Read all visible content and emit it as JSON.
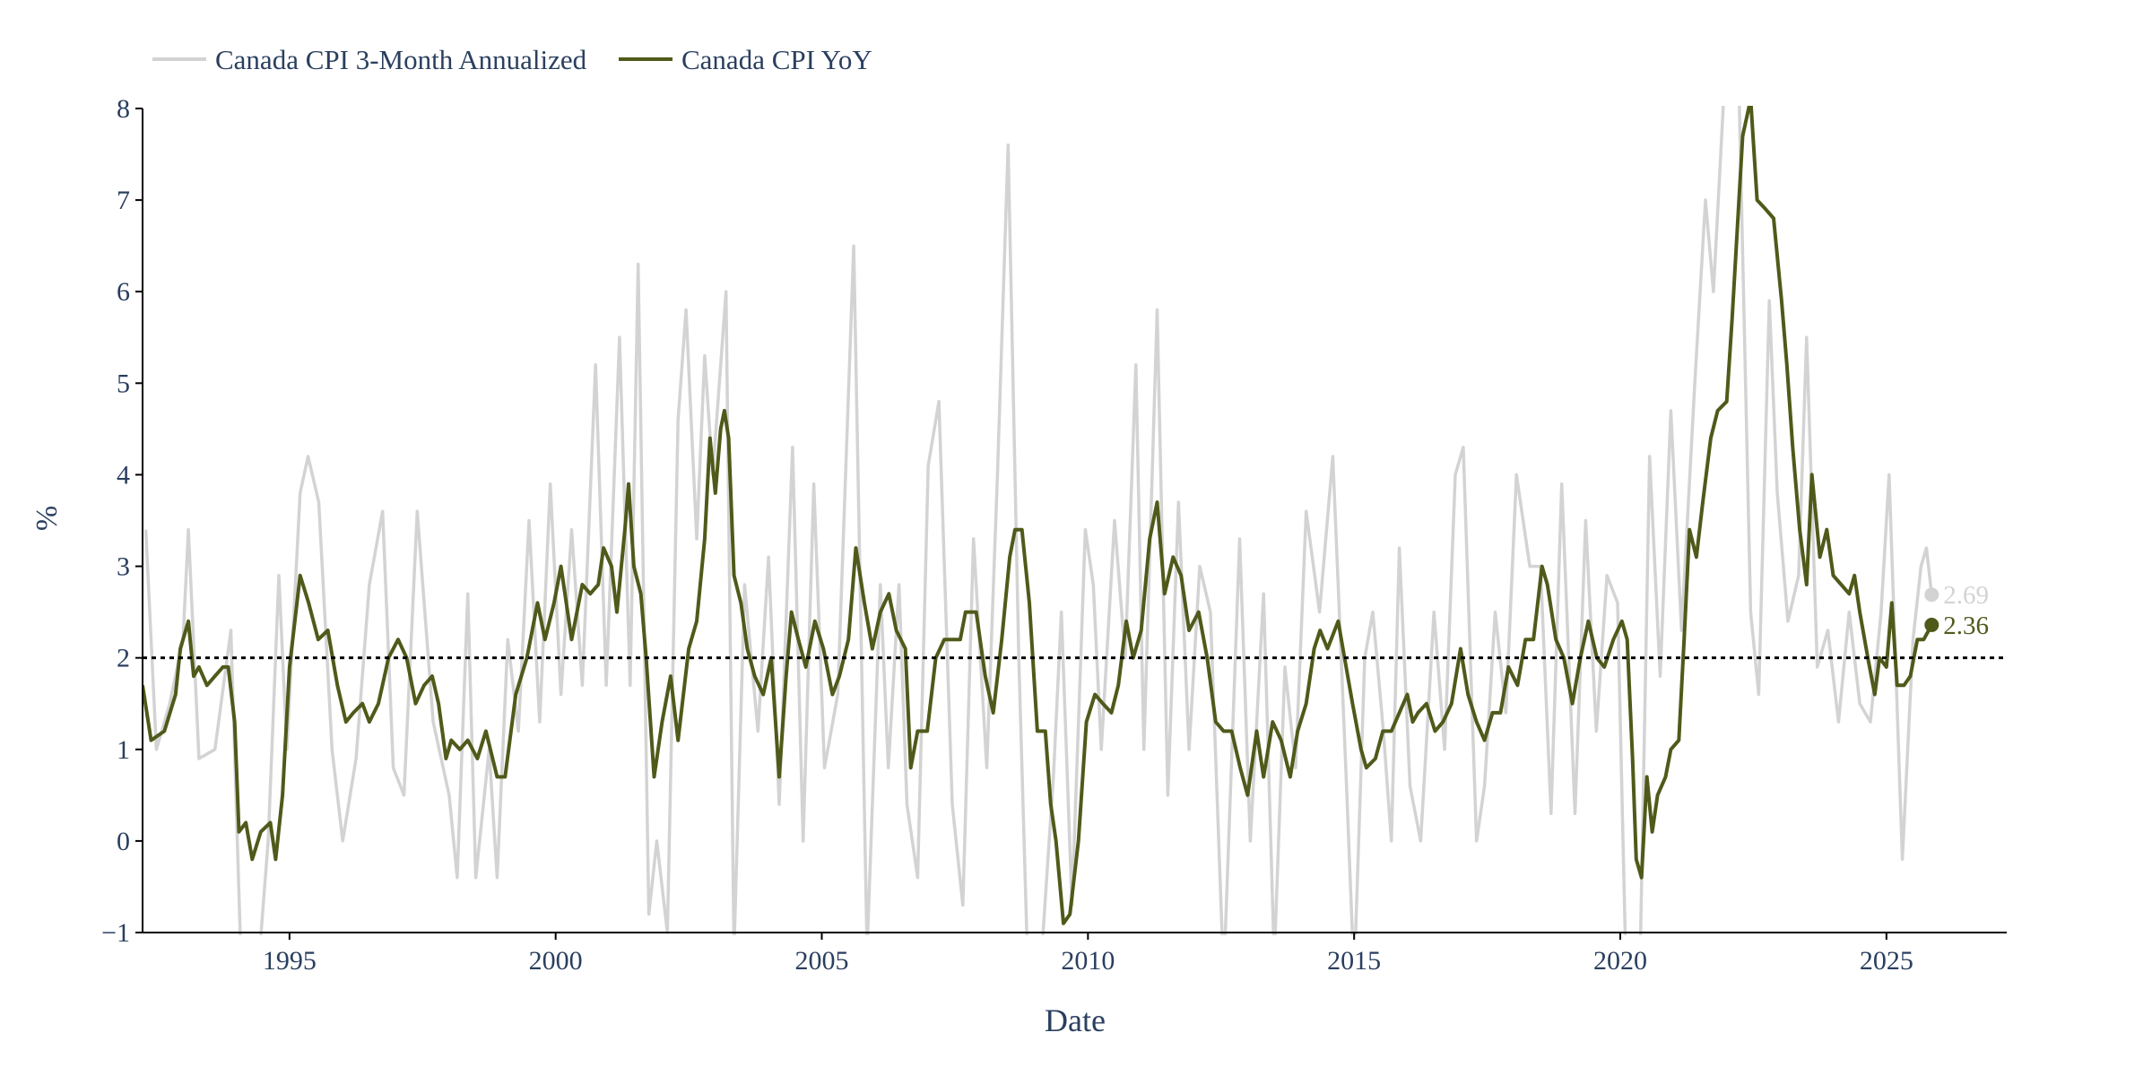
{
  "chart_data": {
    "type": "line",
    "title": "",
    "xlabel": "Date",
    "ylabel": "%",
    "xlim": [
      1992.24,
      2027.26
    ],
    "ylim": [
      -1,
      8
    ],
    "xticks": [
      1995,
      2000,
      2005,
      2010,
      2015,
      2020,
      2025
    ],
    "yticks": [
      -1,
      0,
      1,
      2,
      3,
      4,
      5,
      6,
      7,
      8
    ],
    "grid": false,
    "legend": "top-left, horizontal",
    "reference_line": {
      "y": 2,
      "style": "dotted",
      "color": "#000000"
    },
    "series": [
      {
        "name": "Canada CPI 3-Month Annualized",
        "color": "#d3d3d3",
        "last_label": "2.69",
        "x": [
          1992.3,
          1992.5,
          1992.75,
          1993.0,
          1993.1,
          1993.3,
          1993.6,
          1993.9,
          1994.1,
          1994.4,
          1994.6,
          1994.8,
          1994.95,
          1995.2,
          1995.35,
          1995.55,
          1995.8,
          1996.0,
          1996.25,
          1996.5,
          1996.75,
          1996.95,
          1997.15,
          1997.4,
          1997.7,
          1998.0,
          1998.15,
          1998.35,
          1998.5,
          1998.75,
          1998.9,
          1999.1,
          1999.3,
          1999.5,
          1999.7,
          1999.9,
          2000.1,
          2000.3,
          2000.5,
          2000.75,
          2000.95,
          2001.2,
          2001.4,
          2001.55,
          2001.75,
          2001.9,
          2002.1,
          2002.3,
          2002.45,
          2002.65,
          2002.8,
          2002.95,
          2003.2,
          2003.35,
          2003.55,
          2003.8,
          2004.0,
          2004.2,
          2004.45,
          2004.65,
          2004.85,
          2005.05,
          2005.3,
          2005.6,
          2005.85,
          2006.1,
          2006.25,
          2006.45,
          2006.6,
          2006.8,
          2007.0,
          2007.2,
          2007.45,
          2007.65,
          2007.85,
          2008.1,
          2008.3,
          2008.5,
          2008.7,
          2008.9,
          2009.1,
          2009.35,
          2009.5,
          2009.7,
          2009.95,
          2010.1,
          2010.25,
          2010.5,
          2010.7,
          2010.9,
          2011.05,
          2011.3,
          2011.5,
          2011.7,
          2011.9,
          2012.1,
          2012.3,
          2012.55,
          2012.85,
          2013.05,
          2013.3,
          2013.5,
          2013.7,
          2013.9,
          2014.1,
          2014.35,
          2014.6,
          2014.85,
          2015.0,
          2015.2,
          2015.35,
          2015.55,
          2015.7,
          2015.85,
          2016.05,
          2016.25,
          2016.5,
          2016.7,
          2016.9,
          2017.05,
          2017.3,
          2017.45,
          2017.65,
          2017.85,
          2018.05,
          2018.3,
          2018.5,
          2018.7,
          2018.9,
          2019.15,
          2019.35,
          2019.55,
          2019.75,
          2019.95,
          2020.15,
          2020.35,
          2020.55,
          2020.75,
          2020.95,
          2021.15,
          2021.4,
          2021.6,
          2021.75,
          2021.95,
          2022.2,
          2022.45,
          2022.6,
          2022.8,
          2022.95,
          2023.15,
          2023.35,
          2023.5,
          2023.7,
          2023.9,
          2024.1,
          2024.3,
          2024.5,
          2024.7,
          2024.9,
          2025.05,
          2025.3,
          2025.5,
          2025.65,
          2025.75,
          2025.85
        ],
        "values": [
          3.4,
          1.0,
          1.5,
          2.2,
          3.4,
          0.9,
          1.0,
          2.3,
          -1.5,
          -1.5,
          0.0,
          2.9,
          1.0,
          3.8,
          4.2,
          3.7,
          1.0,
          0.0,
          0.9,
          2.8,
          3.6,
          0.8,
          0.5,
          3.6,
          1.3,
          0.5,
          -0.4,
          2.7,
          -0.4,
          1.0,
          -0.4,
          2.2,
          1.2,
          3.5,
          1.3,
          3.9,
          1.6,
          3.4,
          1.7,
          5.2,
          1.7,
          5.5,
          1.7,
          6.3,
          -0.8,
          0.0,
          -1.0,
          4.6,
          5.8,
          3.3,
          5.3,
          4.0,
          6.0,
          -1.2,
          2.8,
          1.2,
          3.1,
          0.4,
          4.3,
          0.0,
          3.9,
          0.8,
          1.6,
          6.5,
          -1.2,
          2.8,
          0.8,
          2.8,
          0.4,
          -0.4,
          4.1,
          4.8,
          0.4,
          -0.7,
          3.3,
          0.8,
          4.0,
          7.6,
          2.0,
          -2.0,
          -1.5,
          0.7,
          2.5,
          -0.7,
          3.4,
          2.8,
          1.0,
          3.5,
          2.0,
          5.2,
          1.0,
          5.8,
          0.5,
          3.7,
          1.0,
          3.0,
          2.5,
          -1.5,
          3.3,
          0.0,
          2.7,
          -1.3,
          1.9,
          0.8,
          3.6,
          2.5,
          4.2,
          0.7,
          -1.5,
          2.0,
          2.5,
          1.2,
          0.0,
          3.2,
          0.6,
          0.0,
          2.5,
          1.0,
          4.0,
          4.3,
          0.0,
          0.6,
          2.5,
          1.4,
          4.0,
          3.0,
          3.0,
          0.3,
          3.9,
          0.3,
          3.5,
          1.2,
          2.9,
          2.6,
          -2.5,
          -2.0,
          4.2,
          1.8,
          4.7,
          2.3,
          5.0,
          7.0,
          6.0,
          8.2,
          9.0,
          2.5,
          1.6,
          5.9,
          3.8,
          2.4,
          2.9,
          5.5,
          1.9,
          2.3,
          1.3,
          2.5,
          1.5,
          1.3,
          2.5,
          4.0,
          -0.2,
          2.2,
          3.0,
          3.2,
          2.69
        ]
      },
      {
        "name": "Canada CPI YoY",
        "color": "#4f5a1a",
        "last_label": "2.36",
        "x": [
          1992.24,
          1992.4,
          1992.65,
          1992.86,
          1992.95,
          1993.1,
          1993.2,
          1993.3,
          1993.45,
          1993.6,
          1993.75,
          1993.85,
          1993.97,
          1994.05,
          1994.18,
          1994.3,
          1994.46,
          1994.64,
          1994.74,
          1994.87,
          1995.0,
          1995.2,
          1995.36,
          1995.54,
          1995.72,
          1995.9,
          1996.06,
          1996.2,
          1996.37,
          1996.5,
          1996.67,
          1996.86,
          1997.04,
          1997.2,
          1997.37,
          1997.53,
          1997.68,
          1997.8,
          1997.94,
          1998.04,
          1998.2,
          1998.35,
          1998.53,
          1998.69,
          1998.9,
          1999.05,
          1999.25,
          1999.46,
          1999.66,
          1999.8,
          1999.97,
          2000.1,
          2000.3,
          2000.5,
          2000.65,
          2000.8,
          2000.9,
          2001.05,
          2001.15,
          2001.3,
          2001.37,
          2001.47,
          2001.6,
          2001.7,
          2001.85,
          2002.0,
          2002.16,
          2002.3,
          2002.5,
          2002.65,
          2002.8,
          2002.9,
          2003.0,
          2003.1,
          2003.17,
          2003.25,
          2003.35,
          2003.48,
          2003.6,
          2003.74,
          2003.9,
          2004.05,
          2004.2,
          2004.33,
          2004.43,
          2004.56,
          2004.7,
          2004.87,
          2005.03,
          2005.2,
          2005.33,
          2005.5,
          2005.64,
          2005.8,
          2005.95,
          2006.1,
          2006.26,
          2006.4,
          2006.57,
          2006.67,
          2006.8,
          2006.98,
          2007.14,
          2007.3,
          2007.46,
          2007.6,
          2007.7,
          2007.9,
          2008.07,
          2008.22,
          2008.38,
          2008.53,
          2008.63,
          2008.76,
          2008.9,
          2009.05,
          2009.2,
          2009.3,
          2009.4,
          2009.54,
          2009.66,
          2009.82,
          2009.97,
          2010.13,
          2010.28,
          2010.44,
          2010.57,
          2010.72,
          2010.85,
          2011.0,
          2011.16,
          2011.3,
          2011.44,
          2011.6,
          2011.75,
          2011.9,
          2012.08,
          2012.24,
          2012.4,
          2012.55,
          2012.7,
          2012.86,
          2013.0,
          2013.17,
          2013.3,
          2013.47,
          2013.63,
          2013.8,
          2013.94,
          2014.1,
          2014.25,
          2014.36,
          2014.5,
          2014.7,
          2014.82,
          2014.97,
          2015.13,
          2015.23,
          2015.4,
          2015.54,
          2015.7,
          2015.85,
          2016.0,
          2016.1,
          2016.2,
          2016.36,
          2016.52,
          2016.67,
          2016.83,
          2017.0,
          2017.14,
          2017.3,
          2017.45,
          2017.6,
          2017.75,
          2017.9,
          2018.07,
          2018.22,
          2018.37,
          2018.53,
          2018.63,
          2018.79,
          2018.94,
          2019.1,
          2019.25,
          2019.4,
          2019.56,
          2019.7,
          2019.87,
          2020.03,
          2020.13,
          2020.23,
          2020.3,
          2020.4,
          2020.5,
          2020.6,
          2020.7,
          2020.85,
          2020.95,
          2021.1,
          2021.2,
          2021.3,
          2021.43,
          2021.55,
          2021.7,
          2021.83,
          2022.0,
          2022.1,
          2022.2,
          2022.3,
          2022.45,
          2022.57,
          2022.73,
          2022.88,
          2023.03,
          2023.13,
          2023.24,
          2023.37,
          2023.5,
          2023.6,
          2023.75,
          2023.88,
          2024.0,
          2024.15,
          2024.3,
          2024.4,
          2024.5,
          2024.65,
          2024.78,
          2024.87,
          2025.0,
          2025.1,
          2025.2,
          2025.33,
          2025.45,
          2025.58,
          2025.7,
          2025.85
        ],
        "values": [
          1.7,
          1.1,
          1.2,
          1.6,
          2.1,
          2.4,
          1.8,
          1.9,
          1.7,
          1.8,
          1.9,
          1.9,
          1.3,
          0.1,
          0.2,
          -0.2,
          0.1,
          0.2,
          -0.2,
          0.5,
          1.9,
          2.9,
          2.6,
          2.2,
          2.3,
          1.7,
          1.3,
          1.4,
          1.5,
          1.3,
          1.5,
          2.0,
          2.2,
          2.0,
          1.5,
          1.7,
          1.8,
          1.5,
          0.9,
          1.1,
          1.0,
          1.1,
          0.9,
          1.2,
          0.7,
          0.7,
          1.6,
          2.0,
          2.6,
          2.2,
          2.6,
          3.0,
          2.2,
          2.8,
          2.7,
          2.8,
          3.2,
          3.0,
          2.5,
          3.4,
          3.9,
          3.0,
          2.7,
          2.0,
          0.7,
          1.3,
          1.8,
          1.1,
          2.1,
          2.4,
          3.3,
          4.4,
          3.8,
          4.5,
          4.7,
          4.4,
          2.9,
          2.6,
          2.1,
          1.8,
          1.6,
          2.0,
          0.7,
          1.8,
          2.5,
          2.2,
          1.9,
          2.4,
          2.1,
          1.6,
          1.8,
          2.2,
          3.2,
          2.6,
          2.1,
          2.5,
          2.7,
          2.3,
          2.1,
          0.8,
          1.2,
          1.2,
          2.0,
          2.2,
          2.2,
          2.2,
          2.5,
          2.5,
          1.8,
          1.4,
          2.2,
          3.1,
          3.4,
          3.4,
          2.6,
          1.2,
          1.2,
          0.4,
          0.0,
          -0.9,
          -0.8,
          0.0,
          1.3,
          1.6,
          1.5,
          1.4,
          1.7,
          2.4,
          2.0,
          2.3,
          3.3,
          3.7,
          2.7,
          3.1,
          2.9,
          2.3,
          2.5,
          2.0,
          1.3,
          1.2,
          1.2,
          0.8,
          0.5,
          1.2,
          0.7,
          1.3,
          1.1,
          0.7,
          1.2,
          1.5,
          2.1,
          2.3,
          2.1,
          2.4,
          2.0,
          1.5,
          1.0,
          0.8,
          0.9,
          1.2,
          1.2,
          1.4,
          1.6,
          1.3,
          1.4,
          1.5,
          1.2,
          1.3,
          1.5,
          2.1,
          1.6,
          1.3,
          1.1,
          1.4,
          1.4,
          1.9,
          1.7,
          2.2,
          2.2,
          3.0,
          2.8,
          2.2,
          2.0,
          1.5,
          2.0,
          2.4,
          2.0,
          1.9,
          2.2,
          2.4,
          2.2,
          0.9,
          -0.2,
          -0.4,
          0.7,
          0.1,
          0.5,
          0.7,
          1.0,
          1.1,
          2.2,
          3.4,
          3.1,
          3.7,
          4.4,
          4.7,
          4.8,
          5.7,
          6.7,
          7.7,
          8.1,
          7.0,
          6.9,
          6.8,
          5.9,
          5.2,
          4.3,
          3.4,
          2.8,
          4.0,
          3.1,
          3.4,
          2.9,
          2.8,
          2.7,
          2.9,
          2.5,
          2.0,
          1.6,
          2.0,
          1.9,
          2.6,
          1.7,
          1.7,
          1.8,
          2.2,
          2.2,
          2.36
        ]
      }
    ]
  }
}
